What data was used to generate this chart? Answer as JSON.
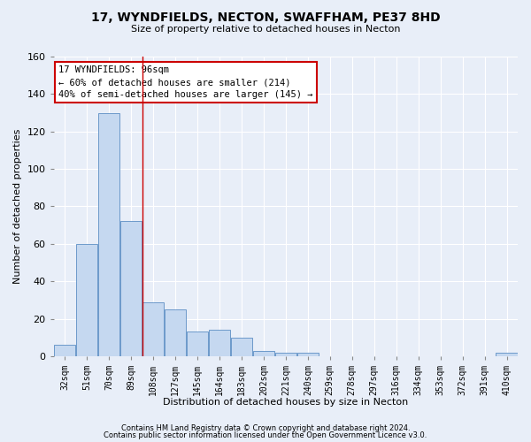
{
  "title": "17, WYNDFIELDS, NECTON, SWAFFHAM, PE37 8HD",
  "subtitle": "Size of property relative to detached houses in Necton",
  "xlabel": "Distribution of detached houses by size in Necton",
  "ylabel": "Number of detached properties",
  "categories": [
    "32sqm",
    "51sqm",
    "70sqm",
    "89sqm",
    "108sqm",
    "127sqm",
    "145sqm",
    "164sqm",
    "183sqm",
    "202sqm",
    "221sqm",
    "240sqm",
    "259sqm",
    "278sqm",
    "297sqm",
    "316sqm",
    "334sqm",
    "353sqm",
    "372sqm",
    "391sqm",
    "410sqm"
  ],
  "values": [
    6,
    60,
    130,
    72,
    29,
    25,
    13,
    14,
    10,
    3,
    2,
    2,
    0,
    0,
    0,
    0,
    0,
    0,
    0,
    0,
    2
  ],
  "bar_color": "#c5d8f0",
  "bar_edge_color": "#5b8ec4",
  "ylim": [
    0,
    160
  ],
  "yticks": [
    0,
    20,
    40,
    60,
    80,
    100,
    120,
    140,
    160
  ],
  "vline_bin_index": 3,
  "vline_color": "#cc0000",
  "annotation_line1": "17 WYNDFIELDS: 96sqm",
  "annotation_line2": "← 60% of detached houses are smaller (214)",
  "annotation_line3": "40% of semi-detached houses are larger (145) →",
  "annotation_box_color": "#ffffff",
  "annotation_box_edge": "#cc0000",
  "footnote1": "Contains HM Land Registry data © Crown copyright and database right 2024.",
  "footnote2": "Contains public sector information licensed under the Open Government Licence v3.0.",
  "background_color": "#e8eef8",
  "plot_bg_color": "#e8eef8",
  "grid_color": "#ffffff",
  "title_fontsize": 10,
  "subtitle_fontsize": 8,
  "ylabel_fontsize": 8,
  "xlabel_fontsize": 8,
  "tick_fontsize": 7,
  "footnote_fontsize": 6
}
